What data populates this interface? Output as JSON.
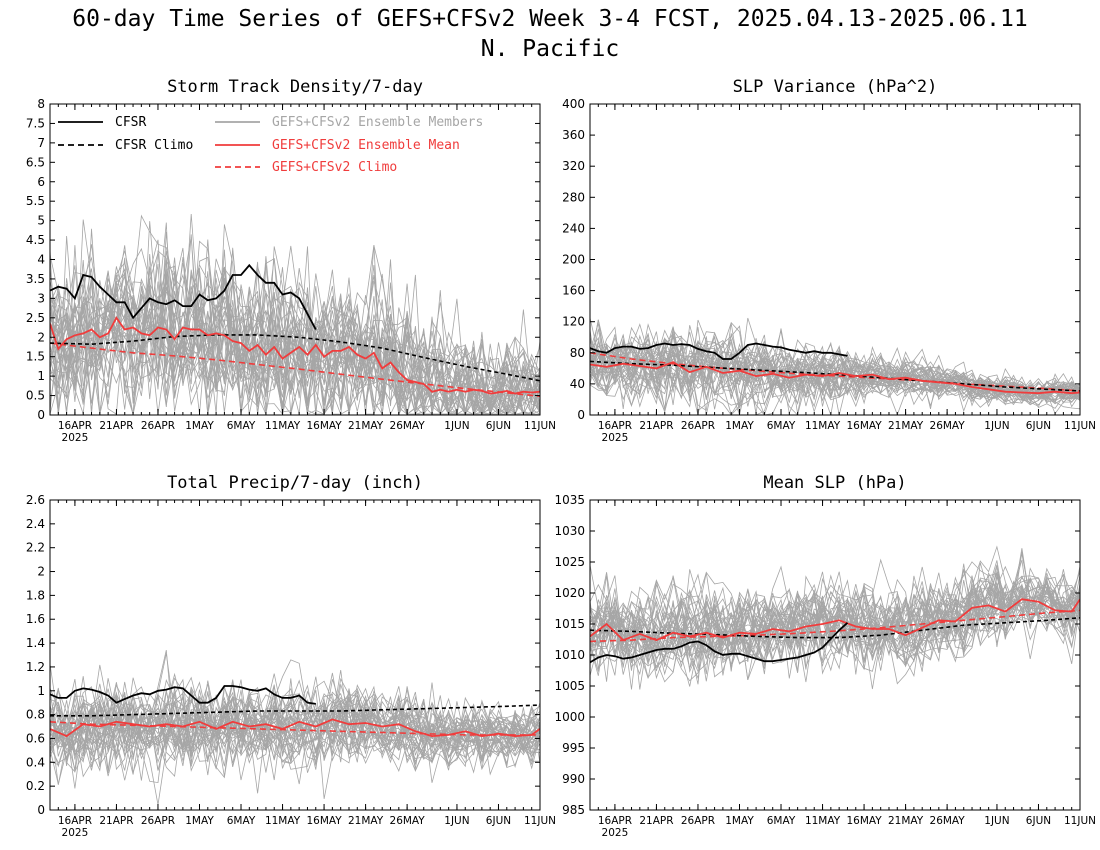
{
  "title_line1": "60-day Time Series of GEFS+CFSv2 Week 3-4 FCST, 2025.04.13-2025.06.11",
  "title_line2": "N. Pacific",
  "x_axis": {
    "tick_labels": [
      "16APR",
      "21APR",
      "26APR",
      "1MAY",
      "6MAY",
      "11MAY",
      "16MAY",
      "21MAY",
      "26MAY",
      "1JUN",
      "6JUN",
      "11JUN"
    ],
    "tick_days": [
      3,
      8,
      13,
      18,
      23,
      28,
      33,
      38,
      43,
      49,
      54,
      59
    ],
    "year_label": "2025",
    "start_date": "2025-04-13",
    "end_date": "2025-06-11"
  },
  "legend": {
    "cfsr": "CFSR",
    "cfsr_climo": "CFSR Climo",
    "ens_members": "GEFS+CFSv2 Ensemble Members",
    "ens_mean": "GEFS+CFSv2 Ensemble Mean",
    "ens_climo": "GEFS+CFSv2 Climo"
  },
  "colors": {
    "cfsr": "#000000",
    "cfsr_climo": "#000000",
    "ens_members": "#a6a6a6",
    "ens_mean": "#f03c3c",
    "ens_climo": "#f03c3c"
  },
  "chart_data": [
    {
      "type": "line",
      "title": "Storm Track Density/7-day",
      "ylim": [
        0,
        8
      ],
      "yticks": [
        "0",
        "0.5",
        "1",
        "1.5",
        "2",
        "2.5",
        "3",
        "3.5",
        "4",
        "4.5",
        "5",
        "5.5",
        "6",
        "6.5",
        "7",
        "7.5",
        "8"
      ],
      "members": {
        "count": 40,
        "center": "ensemble_mean",
        "spread": [
          1.1,
          1.1,
          1.1,
          1.2,
          1.2,
          1.2,
          1.15,
          1.1,
          1.1,
          1.05,
          1.0,
          0.9,
          0.8,
          0.75,
          0.7
        ]
      },
      "series": [
        {
          "name": "CFSR",
          "style": "solid",
          "color": "#000000",
          "x": [
            0,
            1,
            2,
            3,
            4,
            5,
            6,
            7,
            8,
            9,
            10,
            11,
            12,
            13,
            14,
            15,
            16,
            17,
            18,
            19,
            20,
            21,
            22,
            23,
            24,
            25,
            26,
            27,
            28,
            29,
            30,
            31,
            32
          ],
          "values": [
            3.2,
            3.3,
            3.25,
            3.0,
            3.6,
            3.55,
            3.3,
            3.1,
            2.9,
            2.9,
            2.5,
            2.75,
            3.0,
            2.9,
            2.85,
            2.95,
            2.8,
            2.8,
            3.1,
            2.95,
            3.0,
            3.2,
            3.6,
            3.6,
            3.85,
            3.6,
            3.4,
            3.4,
            3.1,
            3.15,
            3.0,
            2.6,
            2.2
          ]
        },
        {
          "name": "CFSR Climo",
          "style": "dashed",
          "color": "#000000",
          "x": [
            0,
            5,
            10,
            15,
            20,
            25,
            30,
            35,
            40,
            45,
            50,
            55,
            59
          ],
          "values": [
            1.85,
            1.82,
            1.9,
            2.02,
            2.06,
            2.06,
            2.0,
            1.88,
            1.72,
            1.48,
            1.25,
            1.05,
            0.88
          ]
        },
        {
          "name": "GEFS+CFSv2 Ensemble Mean",
          "style": "solid",
          "color": "#f03c3c",
          "x": [
            0,
            1,
            2,
            3,
            4,
            5,
            6,
            7,
            8,
            9,
            10,
            11,
            12,
            13,
            14,
            15,
            16,
            17,
            18,
            19,
            20,
            21,
            22,
            23,
            24,
            25,
            26,
            27,
            28,
            29,
            30,
            31,
            32,
            33,
            34,
            35,
            36,
            37,
            38,
            39,
            40,
            41,
            42,
            43,
            44,
            45,
            46,
            47,
            48,
            49,
            50,
            51,
            52,
            53,
            54,
            55,
            56,
            57,
            58,
            59
          ],
          "values": [
            2.35,
            1.7,
            1.95,
            2.05,
            2.1,
            2.2,
            2.0,
            2.1,
            2.5,
            2.2,
            2.25,
            2.1,
            2.05,
            2.25,
            2.2,
            1.95,
            2.25,
            2.2,
            2.2,
            2.05,
            2.1,
            2.05,
            1.9,
            1.85,
            1.65,
            1.8,
            1.55,
            1.75,
            1.45,
            1.6,
            1.75,
            1.55,
            1.8,
            1.5,
            1.65,
            1.65,
            1.75,
            1.55,
            1.45,
            1.6,
            1.2,
            1.35,
            1.1,
            0.9,
            0.85,
            0.8,
            0.6,
            0.65,
            0.6,
            0.65,
            0.6,
            0.65,
            0.62,
            0.55,
            0.58,
            0.62,
            0.55,
            0.6,
            0.58,
            0.6
          ]
        },
        {
          "name": "GEFS+CFSv2 Climo",
          "style": "dashed",
          "color": "#f03c3c",
          "x": [
            0,
            5,
            10,
            15,
            20,
            25,
            30,
            35,
            40,
            45,
            50,
            55,
            59
          ],
          "values": [
            1.85,
            1.72,
            1.6,
            1.52,
            1.42,
            1.3,
            1.18,
            1.05,
            0.92,
            0.8,
            0.68,
            0.57,
            0.48
          ]
        }
      ]
    },
    {
      "type": "line",
      "title": "SLP Variance (hPa^2)",
      "ylim": [
        0,
        400
      ],
      "yticks": [
        "0",
        "40",
        "80",
        "120",
        "160",
        "200",
        "240",
        "280",
        "320",
        "360",
        "400"
      ],
      "members": {
        "count": 40,
        "center": "ensemble_mean",
        "spread": [
          22,
          24,
          26,
          25,
          24,
          22,
          20,
          17,
          14,
          12,
          10,
          9,
          9
        ]
      },
      "series": [
        {
          "name": "CFSR",
          "style": "solid",
          "color": "#000000",
          "x": [
            0,
            1,
            2,
            3,
            4,
            5,
            6,
            7,
            8,
            9,
            10,
            11,
            12,
            13,
            14,
            15,
            16,
            17,
            18,
            19,
            20,
            21,
            22,
            23,
            24,
            25,
            26,
            27,
            28,
            29,
            30,
            31
          ],
          "values": [
            86,
            82,
            80,
            86,
            88,
            88,
            85,
            86,
            90,
            92,
            90,
            91,
            90,
            85,
            82,
            80,
            72,
            72,
            80,
            90,
            92,
            90,
            88,
            87,
            84,
            82,
            80,
            82,
            80,
            80,
            78,
            76
          ]
        },
        {
          "name": "CFSR Climo",
          "style": "dashed",
          "color": "#000000",
          "x": [
            0,
            5,
            10,
            15,
            20,
            25,
            30,
            35,
            40,
            45,
            50,
            55,
            59
          ],
          "values": [
            69,
            66,
            64,
            61,
            58,
            55,
            52,
            48,
            44,
            40,
            36,
            33,
            31
          ]
        },
        {
          "name": "GEFS+CFSv2 Ensemble Mean",
          "style": "solid",
          "color": "#f03c3c",
          "x": [
            0,
            2,
            4,
            6,
            8,
            10,
            12,
            14,
            16,
            18,
            20,
            22,
            24,
            26,
            28,
            30,
            32,
            34,
            36,
            38,
            40,
            42,
            44,
            46,
            48,
            50,
            52,
            54,
            56,
            58,
            59
          ],
          "values": [
            65,
            62,
            66,
            63,
            60,
            68,
            55,
            62,
            54,
            57,
            50,
            53,
            48,
            52,
            50,
            54,
            50,
            52,
            46,
            48,
            44,
            42,
            40,
            36,
            33,
            30,
            29,
            28,
            30,
            28,
            29
          ]
        },
        {
          "name": "GEFS+CFSv2 Climo",
          "style": "dashed",
          "color": "#f03c3c",
          "x": [
            0,
            5,
            10,
            15,
            20,
            25,
            30,
            35,
            40,
            45,
            50,
            55,
            59
          ],
          "values": [
            80,
            72,
            66,
            61,
            57,
            53,
            50,
            47,
            44,
            40,
            37,
            34,
            31
          ]
        }
      ]
    },
    {
      "type": "line",
      "title": "Total Precip/7-day (inch)",
      "ylim": [
        0,
        2.6
      ],
      "yticks": [
        "0",
        "0.2",
        "0.4",
        "0.6",
        "0.8",
        "1",
        "1.2",
        "1.4",
        "1.6",
        "1.8",
        "2",
        "2.2",
        "2.4",
        "2.6"
      ],
      "members": {
        "count": 40,
        "center": "ensemble_mean",
        "spread": [
          0.2,
          0.2,
          0.2,
          0.2,
          0.2,
          0.19,
          0.19,
          0.18,
          0.17,
          0.16,
          0.15,
          0.14,
          0.14
        ]
      },
      "series": [
        {
          "name": "CFSR",
          "style": "solid",
          "color": "#000000",
          "x": [
            0,
            1,
            2,
            3,
            4,
            5,
            6,
            7,
            8,
            9,
            10,
            11,
            12,
            13,
            14,
            15,
            16,
            17,
            18,
            19,
            20,
            21,
            22,
            23,
            24,
            25,
            26,
            27,
            28,
            29,
            30,
            31,
            32
          ],
          "values": [
            0.97,
            0.94,
            0.94,
            1.0,
            1.02,
            1.01,
            0.99,
            0.96,
            0.9,
            0.93,
            0.96,
            0.98,
            0.97,
            1.0,
            1.01,
            1.03,
            1.02,
            0.96,
            0.9,
            0.9,
            0.94,
            1.04,
            1.04,
            1.03,
            1.01,
            1.0,
            1.02,
            0.97,
            0.94,
            0.94,
            0.96,
            0.9,
            0.89
          ]
        },
        {
          "name": "CFSR Climo",
          "style": "dashed",
          "color": "#000000",
          "x": [
            0,
            5,
            10,
            15,
            20,
            25,
            30,
            35,
            40,
            45,
            50,
            55,
            59
          ],
          "values": [
            0.79,
            0.79,
            0.8,
            0.81,
            0.82,
            0.83,
            0.83,
            0.83,
            0.84,
            0.85,
            0.86,
            0.87,
            0.88
          ]
        },
        {
          "name": "GEFS+CFSv2 Ensemble Mean",
          "style": "solid",
          "color": "#f03c3c",
          "x": [
            0,
            2,
            4,
            6,
            8,
            10,
            12,
            14,
            16,
            18,
            20,
            22,
            24,
            26,
            28,
            30,
            32,
            34,
            36,
            38,
            40,
            42,
            44,
            46,
            48,
            50,
            52,
            54,
            56,
            58,
            59
          ],
          "values": [
            0.68,
            0.62,
            0.72,
            0.7,
            0.74,
            0.72,
            0.7,
            0.72,
            0.7,
            0.74,
            0.68,
            0.74,
            0.7,
            0.72,
            0.68,
            0.74,
            0.7,
            0.76,
            0.72,
            0.73,
            0.7,
            0.72,
            0.66,
            0.62,
            0.63,
            0.66,
            0.62,
            0.64,
            0.62,
            0.63,
            0.68
          ]
        },
        {
          "name": "GEFS+CFSv2 Climo",
          "style": "dashed",
          "color": "#f03c3c",
          "x": [
            0,
            5,
            10,
            15,
            20,
            25,
            30,
            35,
            40,
            45,
            50,
            55,
            59
          ],
          "values": [
            0.74,
            0.72,
            0.71,
            0.7,
            0.69,
            0.68,
            0.67,
            0.66,
            0.65,
            0.64,
            0.63,
            0.63,
            0.63
          ]
        }
      ]
    },
    {
      "type": "line",
      "title": "Mean SLP (hPa)",
      "ylim": [
        985,
        1035
      ],
      "yticks": [
        "985",
        "990",
        "995",
        "1000",
        "1005",
        "1010",
        "1015",
        "1020",
        "1025",
        "1030",
        "1035"
      ],
      "members": {
        "count": 40,
        "center": "ensemble_mean",
        "spread": [
          3.5,
          3.6,
          3.7,
          3.8,
          3.8,
          3.8,
          3.7,
          3.6,
          3.5,
          3.4,
          3.3,
          3.2,
          3.2
        ]
      },
      "series": [
        {
          "name": "CFSR",
          "style": "solid",
          "color": "#000000",
          "x": [
            0,
            1,
            2,
            3,
            4,
            5,
            6,
            7,
            8,
            9,
            10,
            11,
            12,
            13,
            14,
            15,
            16,
            17,
            18,
            19,
            20,
            21,
            22,
            23,
            24,
            25,
            26,
            27,
            28,
            29,
            30,
            31
          ],
          "values": [
            1008.8,
            1009.6,
            1010.0,
            1009.8,
            1009.4,
            1009.6,
            1010.0,
            1010.4,
            1010.8,
            1011.0,
            1011.0,
            1011.4,
            1012.0,
            1012.2,
            1011.6,
            1010.6,
            1010.0,
            1010.2,
            1010.2,
            1009.8,
            1009.4,
            1009.0,
            1009.0,
            1009.2,
            1009.4,
            1009.6,
            1010.0,
            1010.4,
            1011.2,
            1012.6,
            1014.0,
            1015.2
          ]
        },
        {
          "name": "CFSR Climo",
          "style": "dashed",
          "color": "#000000",
          "x": [
            0,
            5,
            10,
            15,
            20,
            25,
            30,
            35,
            40,
            45,
            50,
            55,
            59
          ],
          "values": [
            1014.0,
            1013.8,
            1013.5,
            1013.3,
            1013.0,
            1012.8,
            1012.8,
            1013.2,
            1014.0,
            1014.8,
            1015.2,
            1015.6,
            1016.0
          ]
        },
        {
          "name": "GEFS+CFSv2 Ensemble Mean",
          "style": "solid",
          "color": "#f03c3c",
          "x": [
            0,
            2,
            4,
            6,
            8,
            10,
            12,
            14,
            16,
            18,
            20,
            22,
            24,
            26,
            28,
            30,
            32,
            34,
            36,
            38,
            40,
            42,
            44,
            46,
            48,
            50,
            52,
            54,
            56,
            58,
            59
          ],
          "values": [
            1013.0,
            1015.0,
            1012.4,
            1013.4,
            1012.4,
            1013.6,
            1013.0,
            1013.6,
            1012.8,
            1013.6,
            1013.4,
            1014.2,
            1013.8,
            1014.6,
            1015.0,
            1015.6,
            1014.6,
            1014.2,
            1014.2,
            1013.2,
            1014.4,
            1015.6,
            1015.4,
            1017.6,
            1018.0,
            1017.0,
            1019.0,
            1018.6,
            1017.2,
            1017.0,
            1019.0
          ]
        },
        {
          "name": "GEFS+CFSv2 Climo",
          "style": "dashed",
          "color": "#f03c3c",
          "x": [
            0,
            5,
            10,
            15,
            20,
            25,
            30,
            35,
            40,
            45,
            50,
            55,
            59
          ],
          "values": [
            1012.2,
            1012.4,
            1012.8,
            1013.0,
            1013.2,
            1013.5,
            1013.9,
            1014.4,
            1015.0,
            1015.6,
            1016.2,
            1016.8,
            1017.2
          ]
        }
      ]
    }
  ]
}
